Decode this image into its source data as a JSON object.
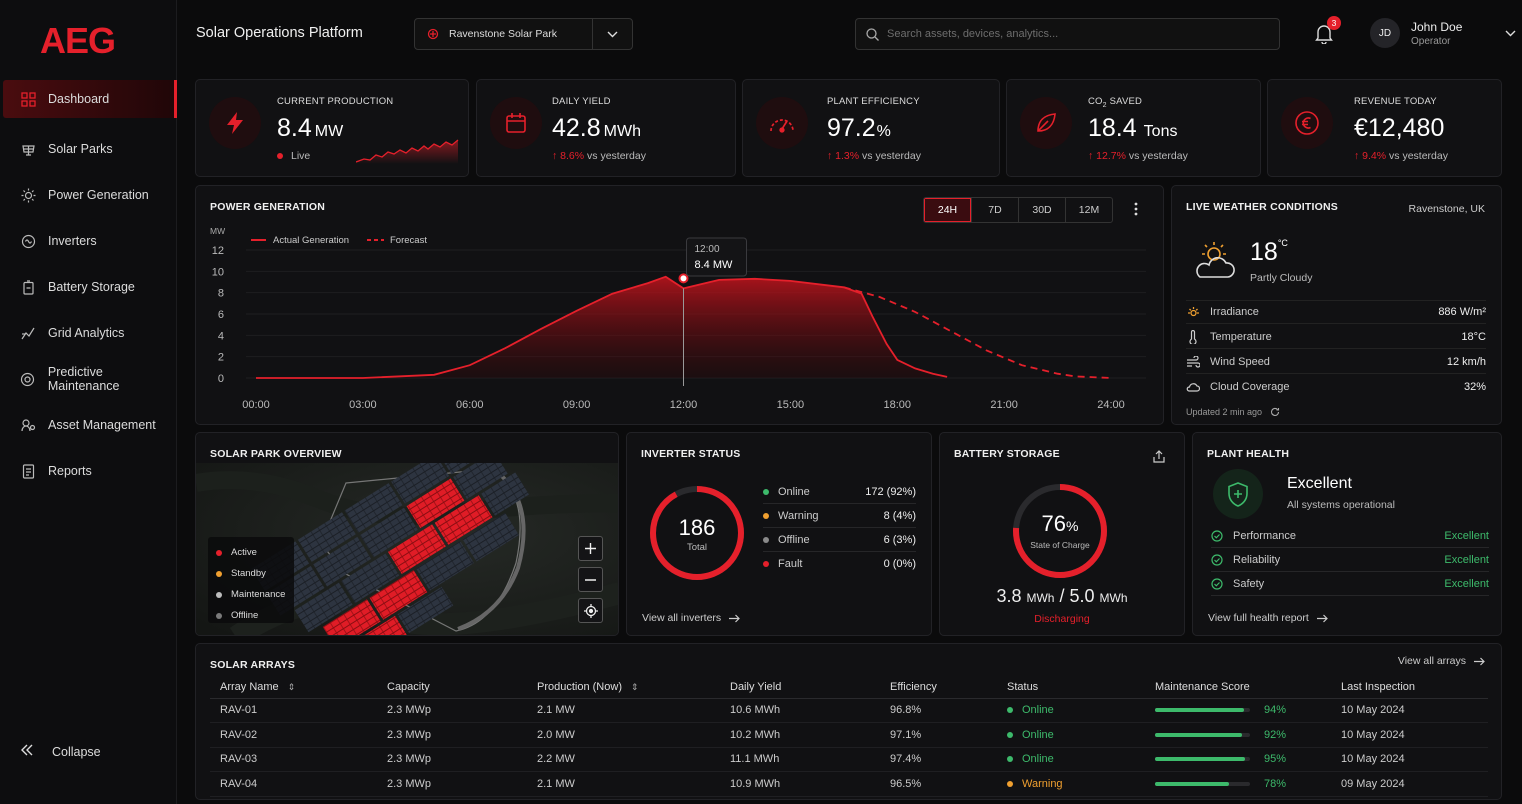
{
  "brand": {
    "logo": "AEG",
    "app_title": "Solar Operations Platform",
    "accent": "#e5202b"
  },
  "sidebar": {
    "items": [
      {
        "label": "Dashboard",
        "icon": "grid-icon"
      },
      {
        "label": "Solar Parks",
        "icon": "solar-panel-icon"
      },
      {
        "label": "Power Generation",
        "icon": "sun-icon"
      },
      {
        "label": "Inverters",
        "icon": "inverter-icon"
      },
      {
        "label": "Battery Storage",
        "icon": "battery-icon"
      },
      {
        "label": "Grid Analytics",
        "icon": "analytics-icon"
      },
      {
        "label": "Predictive Maintenance",
        "icon": "gear-icon"
      },
      {
        "label": "Asset Management",
        "icon": "asset-icon"
      },
      {
        "label": "Reports",
        "icon": "report-icon"
      }
    ],
    "collapse_label": "Collapse"
  },
  "topbar": {
    "site": "Ravenstone Solar Park",
    "search_placeholder": "Search assets, devices, analytics...",
    "notifications": "3",
    "user_initials": "JD",
    "user_name": "John Doe",
    "user_role": "Operator"
  },
  "kpis": {
    "production": {
      "label": "CURRENT PRODUCTION",
      "value": "8.4",
      "unit": "MW",
      "status": "Live"
    },
    "yield": {
      "label": "DAILY YIELD",
      "value": "42.8",
      "unit": "MWh",
      "delta": "8.6%",
      "suffix": "vs yesterday"
    },
    "efficiency": {
      "label": "PLANT EFFICIENCY",
      "value": "97.2",
      "unit": "%",
      "delta": "1.3%",
      "suffix": "vs yesterday"
    },
    "co2": {
      "label_pre": "CO",
      "label_sub": "2",
      "label_post": " SAVED",
      "value": "18.4",
      "unit": "Tons",
      "delta": "12.7%",
      "suffix": "vs yesterday"
    },
    "revenue": {
      "label": "REVENUE TODAY",
      "value": "€12,480",
      "delta": "9.4%",
      "suffix": "vs yesterday"
    }
  },
  "power": {
    "title": "POWER GENERATION",
    "ranges": [
      "24H",
      "7D",
      "30D",
      "12M"
    ],
    "active_range": "24H",
    "tooltip_time": "12:00",
    "tooltip_value": "8.4 MW"
  },
  "chart_data": {
    "type": "area",
    "ylabel": "MW",
    "ylim": [
      0,
      12
    ],
    "yticks": [
      0,
      2,
      4,
      6,
      8,
      10,
      12
    ],
    "xticks": [
      "00:00",
      "03:00",
      "06:00",
      "09:00",
      "12:00",
      "15:00",
      "18:00",
      "21:00",
      "24:00"
    ],
    "legend": "top-left",
    "series": [
      {
        "name": "Actual Generation",
        "style": "solid-area",
        "x": [
          0,
          3,
          5,
          6,
          7,
          8,
          9,
          10,
          11,
          11.5,
          12,
          12.5,
          13,
          14,
          15,
          16,
          16.5,
          17,
          17.3,
          17.7,
          18,
          18.5,
          19,
          19.4
        ],
        "y": [
          0,
          0,
          0.3,
          1.2,
          2.8,
          4.6,
          6.3,
          7.9,
          8.9,
          9.5,
          8.4,
          8.8,
          9.2,
          9.3,
          9.1,
          8.7,
          8.5,
          7.9,
          5.8,
          3.2,
          1.7,
          0.9,
          0.4,
          0.1
        ]
      },
      {
        "name": "Forecast",
        "style": "dashed",
        "x": [
          16.5,
          17.5,
          18.5,
          19.5,
          20.5,
          21.5,
          22.5,
          23,
          24
        ],
        "y": [
          8.5,
          7.6,
          6.2,
          4.4,
          2.6,
          1.2,
          0.4,
          0.15,
          0.0
        ]
      }
    ],
    "highlight": {
      "x": 12,
      "y": 8.4
    }
  },
  "weather": {
    "title": "LIVE WEATHER CONDITIONS",
    "location": "Ravenstone, UK",
    "temp": "18",
    "temp_unit": "°C",
    "condition": "Partly Cloudy",
    "rows": [
      {
        "label": "Irradiance",
        "value": "886 W/m²",
        "icon": "sun-small-icon"
      },
      {
        "label": "Temperature",
        "value": "18°C",
        "icon": "thermometer-icon"
      },
      {
        "label": "Wind Speed",
        "value": "12 km/h",
        "icon": "wind-icon"
      },
      {
        "label": "Cloud Coverage",
        "value": "32%",
        "icon": "cloud-icon"
      }
    ],
    "updated": "Updated 2 min ago"
  },
  "park": {
    "title": "SOLAR PARK OVERVIEW",
    "legend": [
      {
        "label": "Active",
        "color": "#e5202b"
      },
      {
        "label": "Standby",
        "color": "#f0a030"
      },
      {
        "label": "Maintenance",
        "color": "#bdbdbd"
      },
      {
        "label": "Offline",
        "color": "#7a7a7a"
      }
    ]
  },
  "inverters": {
    "title": "INVERTER STATUS",
    "total": "186",
    "total_label": "Total",
    "rows": [
      {
        "label": "Online",
        "value": "172",
        "pct": "(92%)",
        "color": "#3dba6b"
      },
      {
        "label": "Warning",
        "value": "8",
        "pct": "(4%)",
        "color": "#f0a030"
      },
      {
        "label": "Offline",
        "value": "6",
        "pct": "(3%)",
        "color": "#8a8a8a"
      },
      {
        "label": "Fault",
        "value": "0",
        "pct": "(0%)",
        "color": "#e5202b"
      }
    ],
    "link": "View all inverters",
    "online_fraction": 0.92
  },
  "battery": {
    "title": "BATTERY STORAGE",
    "soc": "76",
    "soc_unit": "%",
    "soc_label": "State of Charge",
    "soc_fraction": 0.76,
    "current": "3.8",
    "capacity": "5.0",
    "unit": "MWh",
    "state": "Discharging"
  },
  "health": {
    "title": "PLANT HEALTH",
    "status": "Excellent",
    "sub": "All systems operational",
    "rows": [
      {
        "label": "Performance",
        "value": "Excellent"
      },
      {
        "label": "Reliability",
        "value": "Excellent"
      },
      {
        "label": "Safety",
        "value": "Excellent"
      }
    ],
    "link": "View full health report"
  },
  "arrays": {
    "title": "SOLAR ARRAYS",
    "link": "View all arrays",
    "columns": [
      "Array Name",
      "Capacity",
      "Production (Now)",
      "Daily Yield",
      "Efficiency",
      "Status",
      "Maintenance Score",
      "Last Inspection"
    ],
    "rows": [
      {
        "name": "RAV-01",
        "capacity": "2.3 MWp",
        "production": "2.1 MW",
        "yield": "10.6 MWh",
        "efficiency": "96.8%",
        "status": "Online",
        "score": "94%",
        "score_value": 0.94,
        "inspection": "10 May 2024"
      },
      {
        "name": "RAV-02",
        "capacity": "2.3 MWp",
        "production": "2.0 MW",
        "yield": "10.2 MWh",
        "efficiency": "97.1%",
        "status": "Online",
        "score": "92%",
        "score_value": 0.92,
        "inspection": "10 May 2024"
      },
      {
        "name": "RAV-03",
        "capacity": "2.3 MWp",
        "production": "2.2 MW",
        "yield": "11.1 MWh",
        "efficiency": "97.4%",
        "status": "Online",
        "score": "95%",
        "score_value": 0.95,
        "inspection": "10 May 2024"
      },
      {
        "name": "RAV-04",
        "capacity": "2.3 MWp",
        "production": "2.1 MW",
        "yield": "10.9 MWh",
        "efficiency": "96.5%",
        "status": "Warning",
        "score": "78%",
        "score_value": 0.78,
        "inspection": "09 May 2024"
      }
    ],
    "status_colors": {
      "Online": "#3dba6b",
      "Warning": "#f0a030"
    }
  }
}
